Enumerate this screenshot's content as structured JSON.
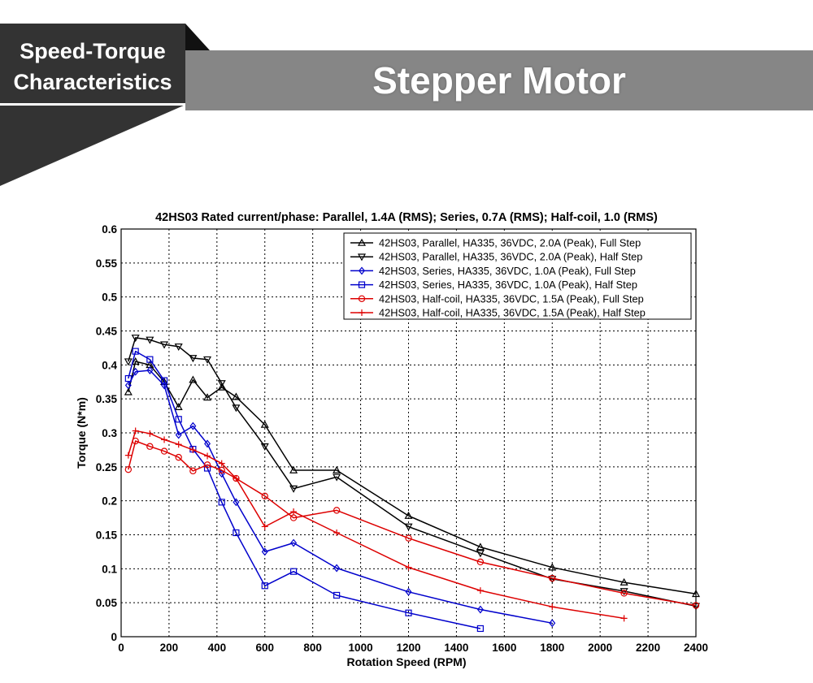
{
  "header": {
    "badge_line1": "Speed-Torque",
    "badge_line2": "Characteristics",
    "title": "Stepper Motor",
    "colors": {
      "badge": "#333333",
      "banner": "#868686",
      "fold": "#111111"
    }
  },
  "chart_data": {
    "type": "line",
    "title": "42HS03 Rated current/phase: Parallel, 1.4A (RMS); Series, 0.7A (RMS); Half-coil, 1.0 (RMS)",
    "xlabel": "Rotation Speed (RPM)",
    "ylabel": "Torque (N*m)",
    "xlim": [
      0,
      2400
    ],
    "ylim": [
      0,
      0.6
    ],
    "xticks": [
      0,
      200,
      400,
      600,
      800,
      1000,
      1200,
      1400,
      1600,
      1800,
      2000,
      2200,
      2400
    ],
    "yticks": [
      0,
      0.05,
      0.1,
      0.15,
      0.2,
      0.25,
      0.3,
      0.35,
      0.4,
      0.45,
      0.5,
      0.55,
      0.6
    ],
    "ytick_labels": [
      "0",
      "0.05",
      "0.1",
      "0.15",
      "0.2",
      "0.25",
      "0.3",
      "0.35",
      "0.4",
      "0.45",
      "0.5",
      "0.55",
      "0.6"
    ],
    "grid": true,
    "legend_position": "top-right",
    "series": [
      {
        "name": "42HS03, Parallel, HA335, 36VDC, 2.0A (Peak), Full Step",
        "color": "#000000",
        "marker": "triangle-up",
        "x": [
          30,
          60,
          120,
          180,
          240,
          300,
          360,
          420,
          480,
          600,
          720,
          900,
          1200,
          1500,
          1800,
          2100,
          2400
        ],
        "y": [
          0.36,
          0.405,
          0.4,
          0.375,
          0.338,
          0.378,
          0.352,
          0.367,
          0.353,
          0.312,
          0.245,
          0.245,
          0.178,
          0.132,
          0.102,
          0.08,
          0.063
        ]
      },
      {
        "name": "42HS03, Parallel, HA335, 36VDC, 2.0A (Peak), Half Step",
        "color": "#000000",
        "marker": "triangle-down",
        "x": [
          30,
          60,
          120,
          180,
          240,
          300,
          360,
          420,
          480,
          600,
          720,
          900,
          1200,
          1500,
          1800,
          2100,
          2400
        ],
        "y": [
          0.405,
          0.44,
          0.437,
          0.43,
          0.427,
          0.41,
          0.408,
          0.373,
          0.337,
          0.28,
          0.218,
          0.235,
          0.162,
          0.123,
          0.085,
          0.067,
          0.045
        ]
      },
      {
        "name": "42HS03, Series, HA335, 36VDC, 1.0A (Peak), Full Step",
        "color": "#0000cc",
        "marker": "diamond",
        "x": [
          30,
          60,
          120,
          180,
          240,
          300,
          360,
          420,
          480,
          600,
          720,
          900,
          1200,
          1500,
          1800
        ],
        "y": [
          0.37,
          0.39,
          0.392,
          0.37,
          0.297,
          0.31,
          0.284,
          0.24,
          0.198,
          0.125,
          0.138,
          0.101,
          0.066,
          0.04,
          0.02
        ]
      },
      {
        "name": "42HS03, Series, HA335, 36VDC, 1.0A (Peak), Half Step",
        "color": "#0000cc",
        "marker": "square",
        "x": [
          30,
          60,
          120,
          180,
          240,
          300,
          360,
          420,
          480,
          600,
          720,
          900,
          1200,
          1500
        ],
        "y": [
          0.38,
          0.42,
          0.408,
          0.377,
          0.32,
          0.276,
          0.248,
          0.198,
          0.153,
          0.075,
          0.096,
          0.061,
          0.035,
          0.012
        ]
      },
      {
        "name": "42HS03, Half-coil, HA335, 36VDC, 1.5A (Peak), Full Step",
        "color": "#dd0000",
        "marker": "circle",
        "x": [
          30,
          60,
          120,
          180,
          240,
          300,
          360,
          420,
          480,
          600,
          720,
          900,
          1200,
          1500,
          1800,
          2100,
          2400
        ],
        "y": [
          0.246,
          0.288,
          0.28,
          0.273,
          0.264,
          0.244,
          0.253,
          0.245,
          0.233,
          0.207,
          0.175,
          0.186,
          0.145,
          0.11,
          0.086,
          0.064,
          0.046
        ]
      },
      {
        "name": "42HS03, Half-coil, HA335, 36VDC, 1.5A (Peak), Half Step",
        "color": "#dd0000",
        "marker": "plus",
        "x": [
          30,
          60,
          120,
          180,
          240,
          300,
          360,
          420,
          480,
          600,
          720,
          900,
          1200,
          1500,
          1800,
          2100
        ],
        "y": [
          0.267,
          0.303,
          0.299,
          0.29,
          0.283,
          0.275,
          0.266,
          0.255,
          0.233,
          0.162,
          0.184,
          0.153,
          0.102,
          0.068,
          0.044,
          0.027
        ]
      }
    ]
  }
}
